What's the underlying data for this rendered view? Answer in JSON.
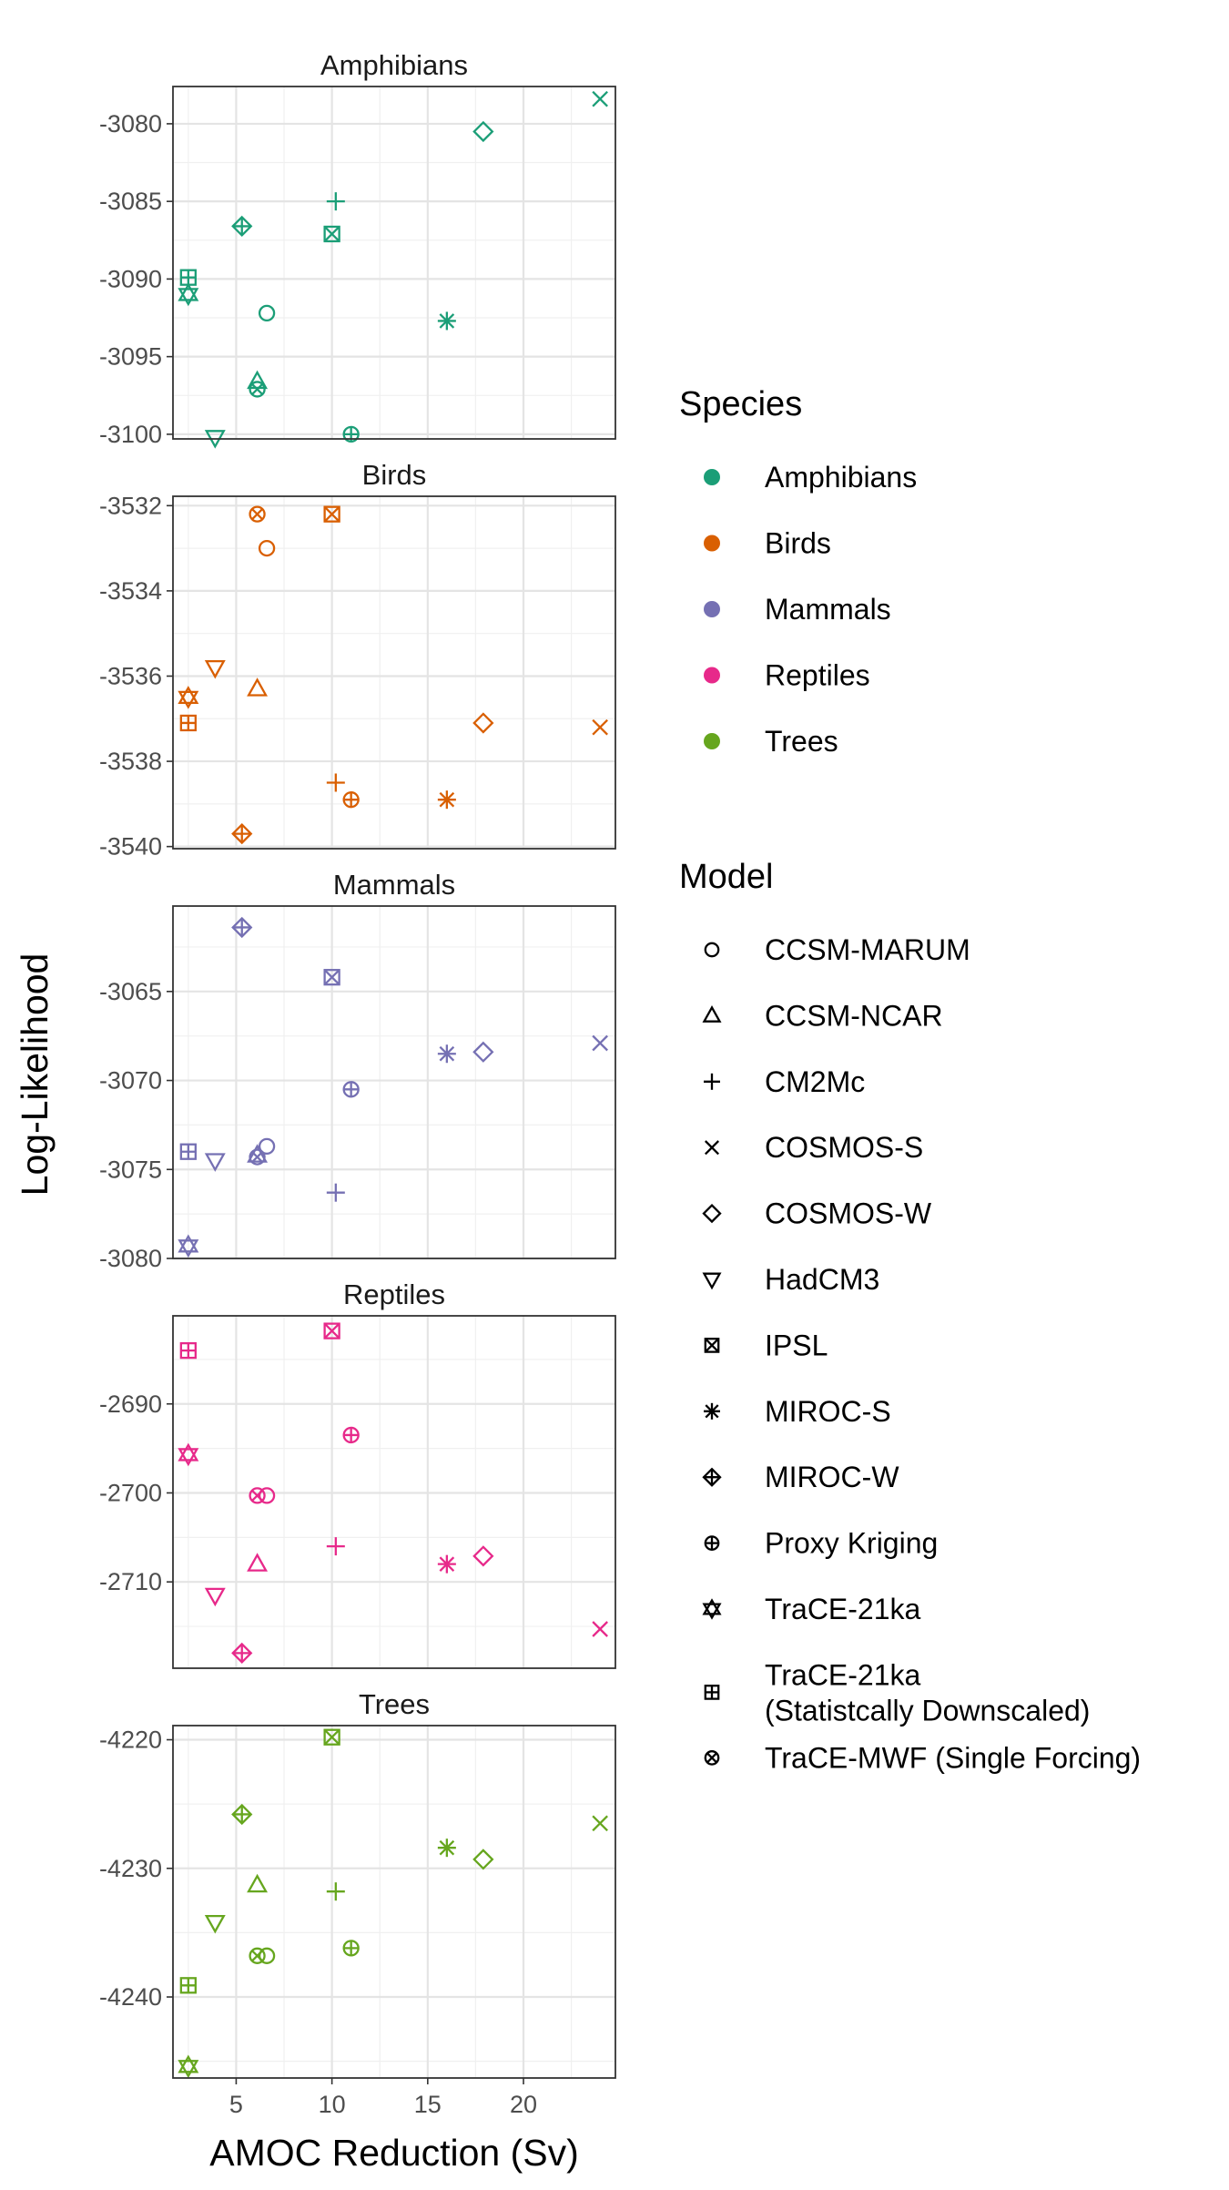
{
  "chart_data": {
    "type": "scatter",
    "xlabel": "AMOC Reduction (Sv)",
    "ylabel": "Log-Likelihood",
    "xlim": [
      1.7,
      24.8
    ],
    "x_ticks": [
      5,
      10,
      15,
      20
    ],
    "grid": true,
    "legend_position": "right",
    "species_legend_title": "Species",
    "model_legend_title": "Model",
    "species": [
      {
        "name": "Amphibians",
        "color": "#1B9E77"
      },
      {
        "name": "Birds",
        "color": "#D95F02"
      },
      {
        "name": "Mammals",
        "color": "#7570B3"
      },
      {
        "name": "Reptiles",
        "color": "#E7298A"
      },
      {
        "name": "Trees",
        "color": "#66A61E"
      }
    ],
    "models": [
      {
        "key": "CCSM-MARUM",
        "label": [
          "CCSM-MARUM"
        ],
        "shape": "circle",
        "x": 6.6
      },
      {
        "key": "CCSM-NCAR",
        "label": [
          "CCSM-NCAR"
        ],
        "shape": "triangle-up",
        "x": 6.1
      },
      {
        "key": "CM2Mc",
        "label": [
          "CM2Mc"
        ],
        "shape": "plus",
        "x": 10.2
      },
      {
        "key": "COSMOS-S",
        "label": [
          "COSMOS-S"
        ],
        "shape": "cross",
        "x": 24.0
      },
      {
        "key": "COSMOS-W",
        "label": [
          "COSMOS-W"
        ],
        "shape": "diamond",
        "x": 17.9
      },
      {
        "key": "HadCM3",
        "label": [
          "HadCM3"
        ],
        "shape": "triangle-down",
        "x": 3.9
      },
      {
        "key": "IPSL",
        "label": [
          "IPSL"
        ],
        "shape": "square-cross",
        "x": 10.0
      },
      {
        "key": "MIROC-S",
        "label": [
          "MIROC-S"
        ],
        "shape": "asterisk",
        "x": 16.0
      },
      {
        "key": "MIROC-W",
        "label": [
          "MIROC-W"
        ],
        "shape": "diamond-plus",
        "x": 5.3
      },
      {
        "key": "Proxy Kriging",
        "label": [
          "Proxy Kriging"
        ],
        "shape": "circle-plus",
        "x": 11.0
      },
      {
        "key": "TraCE-21ka",
        "label": [
          "TraCE-21ka"
        ],
        "shape": "star-david",
        "x": 2.5
      },
      {
        "key": "TraCE-21ka-SD",
        "label": [
          "TraCE-21ka",
          "(Statistcally Downscaled)"
        ],
        "shape": "square-plus",
        "x": 2.5
      },
      {
        "key": "TraCE-MWF",
        "label": [
          "TraCE-MWF (Single Forcing)"
        ],
        "shape": "circle-cross",
        "x": 6.1
      }
    ],
    "panels": [
      {
        "title": "Amphibians",
        "ylim": [
          -3100.3,
          -3077.6
        ],
        "y_ticks": [
          -3080,
          -3085,
          -3090,
          -3095,
          -3100
        ],
        "values": {
          "CCSM-MARUM": -3092.2,
          "CCSM-NCAR": -3096.6,
          "CM2Mc": -3085.0,
          "COSMOS-S": -3078.4,
          "COSMOS-W": -3080.5,
          "HadCM3": -3100.2,
          "IPSL": -3087.1,
          "MIROC-S": -3092.7,
          "MIROC-W": -3086.6,
          "Proxy Kriging": -3100.0,
          "TraCE-21ka": -3091.0,
          "TraCE-21ka-SD": -3089.9,
          "TraCE-MWF": -3097.1
        }
      },
      {
        "title": "Birds",
        "ylim": [
          -3540.05,
          -3531.78
        ],
        "y_ticks": [
          -3532,
          -3534,
          -3536,
          -3538,
          -3540
        ],
        "values": {
          "CCSM-MARUM": -3533.0,
          "CCSM-NCAR": -3536.3,
          "CM2Mc": -3538.5,
          "COSMOS-S": -3537.2,
          "COSMOS-W": -3537.1,
          "HadCM3": -3535.8,
          "IPSL": -3532.2,
          "MIROC-S": -3538.9,
          "MIROC-W": -3539.7,
          "Proxy Kriging": -3538.9,
          "TraCE-21ka": -3536.5,
          "TraCE-21ka-SD": -3537.1,
          "TraCE-MWF": -3532.2
        }
      },
      {
        "title": "Mammals",
        "ylim": [
          -3080.0,
          -3060.2
        ],
        "y_ticks": [
          -3065,
          -3070,
          -3075,
          -3080
        ],
        "values": {
          "CCSM-MARUM": -3073.7,
          "CCSM-NCAR": -3074.2,
          "CM2Mc": -3076.3,
          "COSMOS-S": -3067.9,
          "COSMOS-W": -3068.4,
          "HadCM3": -3074.5,
          "IPSL": -3064.2,
          "MIROC-S": -3068.5,
          "MIROC-W": -3061.4,
          "Proxy Kriging": -3070.5,
          "TraCE-21ka": -3079.3,
          "TraCE-21ka-SD": -3074.0,
          "TraCE-MWF": -3074.3
        }
      },
      {
        "title": "Reptiles",
        "ylim": [
          -2719.7,
          -2680.1
        ],
        "y_ticks": [
          -2690,
          -2700,
          -2710
        ],
        "values": {
          "CCSM-MARUM": -2700.3,
          "CCSM-NCAR": -2708.0,
          "CM2Mc": -2706.0,
          "COSMOS-S": -2715.3,
          "COSMOS-W": -2707.1,
          "HadCM3": -2711.5,
          "IPSL": -2681.8,
          "MIROC-S": -2708.0,
          "MIROC-W": -2718.0,
          "Proxy Kriging": -2693.5,
          "TraCE-21ka": -2695.7,
          "TraCE-21ka-SD": -2684.0,
          "TraCE-MWF": -2700.3
        }
      },
      {
        "title": "Trees",
        "ylim": [
          -4246.3,
          -4218.9
        ],
        "y_ticks": [
          -4220,
          -4230,
          -4240
        ],
        "values": {
          "CCSM-MARUM": -4236.8,
          "CCSM-NCAR": -4231.3,
          "CM2Mc": -4231.8,
          "COSMOS-S": -4226.5,
          "COSMOS-W": -4229.3,
          "HadCM3": -4234.2,
          "IPSL": -4219.8,
          "MIROC-S": -4228.4,
          "MIROC-W": -4225.8,
          "Proxy Kriging": -4236.2,
          "TraCE-21ka": -4245.4,
          "TraCE-21ka-SD": -4239.1,
          "TraCE-MWF": -4236.8
        }
      }
    ]
  }
}
